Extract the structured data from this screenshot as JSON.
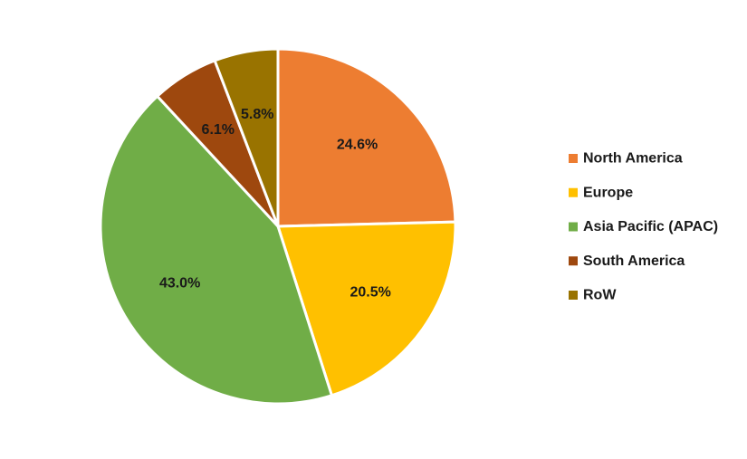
{
  "chart_data": {
    "type": "pie",
    "title": "",
    "categories": [
      "North America",
      "Europe",
      "Asia Pacific (APAC)",
      "South America",
      "RoW"
    ],
    "values": [
      24.6,
      20.5,
      43.0,
      6.1,
      5.8
    ],
    "value_labels": [
      "24.6%",
      "20.5%",
      "43.0%",
      "6.1%",
      "5.8%"
    ],
    "colors": [
      "#ED7D31",
      "#FFC000",
      "#70AD47",
      "#9E480E",
      "#997300"
    ],
    "start": "12 o'clock",
    "direction": "clockwise",
    "legend_position": "right"
  }
}
